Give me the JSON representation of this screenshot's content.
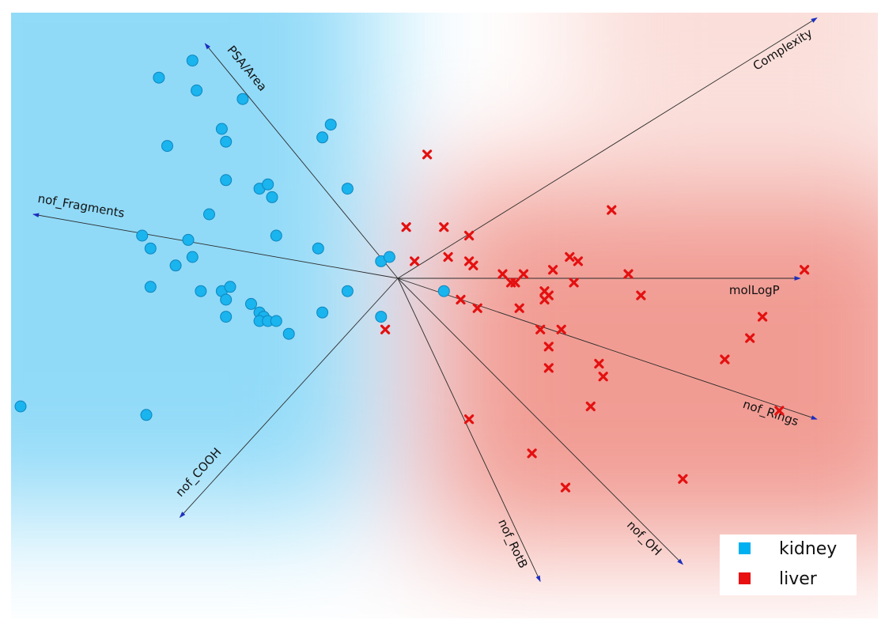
{
  "chart_data": {
    "type": "scatter",
    "subtype": "pca-biplot",
    "title": "",
    "xlabel": "",
    "ylabel": "",
    "grid": false,
    "xlim": [
      -1.0,
      1.0
    ],
    "ylim": [
      -0.72,
      0.72
    ],
    "origin": [
      0,
      0
    ],
    "legend": {
      "position": "bottom-right",
      "entries": [
        {
          "label": "kidney",
          "color": "#00b0f0",
          "marker": "square"
        },
        {
          "label": "liver",
          "color": "#e02020",
          "marker": "square"
        }
      ]
    },
    "loadings": [
      {
        "name": "PSA/Area",
        "dx": -0.46,
        "dy": 0.55
      },
      {
        "name": "Complexity",
        "dx": 1.0,
        "dy": 0.61
      },
      {
        "name": "nof_Fragments",
        "dx": -0.87,
        "dy": 0.15
      },
      {
        "name": "molLogP",
        "dx": 0.96,
        "dy": 0.0
      },
      {
        "name": "nof_Rings",
        "dx": 1.0,
        "dy": -0.33
      },
      {
        "name": "nof_COOH",
        "dx": -0.52,
        "dy": -0.56
      },
      {
        "name": "nof_RotB",
        "dx": 0.34,
        "dy": -0.71
      },
      {
        "name": "nof_OH",
        "dx": 0.68,
        "dy": -0.67
      }
    ],
    "series": [
      {
        "name": "kidney",
        "color": "#1ab4ee",
        "marker": "circle",
        "points": [
          [
            -0.49,
            0.51
          ],
          [
            -0.57,
            0.47
          ],
          [
            -0.48,
            0.44
          ],
          [
            -0.37,
            0.42
          ],
          [
            -0.42,
            0.35
          ],
          [
            -0.41,
            0.32
          ],
          [
            -0.55,
            0.31
          ],
          [
            -0.16,
            0.36
          ],
          [
            -0.18,
            0.33
          ],
          [
            -0.41,
            0.23
          ],
          [
            -0.33,
            0.21
          ],
          [
            -0.31,
            0.22
          ],
          [
            -0.3,
            0.19
          ],
          [
            -0.12,
            0.21
          ],
          [
            -0.45,
            0.15
          ],
          [
            -0.61,
            0.1
          ],
          [
            -0.59,
            0.07
          ],
          [
            -0.5,
            0.09
          ],
          [
            -0.29,
            0.1
          ],
          [
            -0.19,
            0.07
          ],
          [
            -0.49,
            0.05
          ],
          [
            -0.53,
            0.03
          ],
          [
            -0.04,
            0.04
          ],
          [
            -0.02,
            0.05
          ],
          [
            -0.59,
            -0.02
          ],
          [
            -0.47,
            -0.03
          ],
          [
            -0.42,
            -0.03
          ],
          [
            -0.41,
            -0.05
          ],
          [
            -0.4,
            -0.02
          ],
          [
            -0.35,
            -0.06
          ],
          [
            -0.33,
            -0.08
          ],
          [
            -0.32,
            -0.09
          ],
          [
            -0.33,
            -0.1
          ],
          [
            -0.31,
            -0.1
          ],
          [
            -0.29,
            -0.1
          ],
          [
            -0.41,
            -0.09
          ],
          [
            -0.18,
            -0.08
          ],
          [
            -0.12,
            -0.03
          ],
          [
            -0.26,
            -0.13
          ],
          [
            -0.04,
            -0.09
          ],
          [
            0.11,
            -0.03
          ],
          [
            -0.9,
            -0.3
          ],
          [
            -0.6,
            -0.32
          ]
        ]
      },
      {
        "name": "liver",
        "color": "#e41010",
        "marker": "x",
        "points": [
          [
            0.07,
            0.29
          ],
          [
            0.51,
            0.16
          ],
          [
            0.02,
            0.12
          ],
          [
            0.11,
            0.12
          ],
          [
            0.17,
            0.1
          ],
          [
            0.04,
            0.04
          ],
          [
            0.12,
            0.05
          ],
          [
            0.17,
            0.04
          ],
          [
            0.18,
            0.03
          ],
          [
            0.41,
            0.05
          ],
          [
            0.43,
            0.04
          ],
          [
            0.37,
            0.02
          ],
          [
            0.25,
            0.01
          ],
          [
            0.3,
            0.01
          ],
          [
            0.55,
            0.01
          ],
          [
            0.97,
            0.02
          ],
          [
            0.27,
            -0.01
          ],
          [
            0.28,
            -0.01
          ],
          [
            0.35,
            -0.03
          ],
          [
            0.36,
            -0.04
          ],
          [
            0.42,
            -0.01
          ],
          [
            0.58,
            -0.04
          ],
          [
            0.35,
            -0.05
          ],
          [
            0.15,
            -0.05
          ],
          [
            0.19,
            -0.07
          ],
          [
            0.29,
            -0.07
          ],
          [
            0.87,
            -0.09
          ],
          [
            0.84,
            -0.14
          ],
          [
            0.34,
            -0.12
          ],
          [
            0.39,
            -0.12
          ],
          [
            -0.03,
            -0.12
          ],
          [
            0.36,
            -0.16
          ],
          [
            0.78,
            -0.19
          ],
          [
            0.48,
            -0.2
          ],
          [
            0.36,
            -0.21
          ],
          [
            0.49,
            -0.23
          ],
          [
            0.46,
            -0.3
          ],
          [
            0.91,
            -0.31
          ],
          [
            0.17,
            -0.33
          ],
          [
            0.32,
            -0.41
          ],
          [
            0.68,
            -0.47
          ],
          [
            0.4,
            -0.49
          ]
        ]
      }
    ]
  }
}
